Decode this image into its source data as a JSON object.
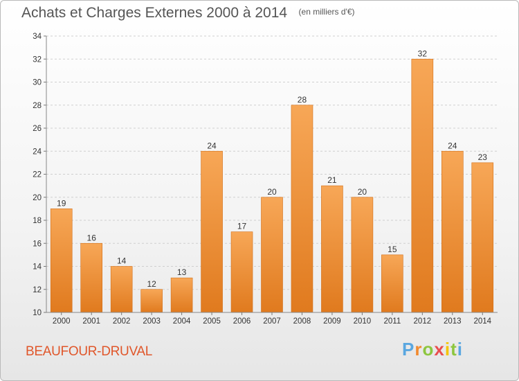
{
  "title": "Achats et Charges Externes 2000 à 2014",
  "subtitle": "(en milliers d'€)",
  "commune": "BEAUFOUR-DRUVAL",
  "logo": {
    "letters": [
      "P",
      "r",
      "o",
      "x",
      "i",
      "t",
      "i"
    ],
    "colors": [
      "#5aa7e0",
      "#f28a2e",
      "#8dc63f",
      "#e94e4e",
      "#f5c400",
      "#8dc63f",
      "#5aa7e0"
    ]
  },
  "colors": {
    "bar_top": "#f7a757",
    "bar_bottom": "#e07a1e",
    "commune_text": "#e0562a"
  },
  "chart_data": {
    "type": "bar",
    "categories": [
      "2000",
      "2001",
      "2002",
      "2003",
      "2004",
      "2005",
      "2006",
      "2007",
      "2008",
      "2009",
      "2010",
      "2011",
      "2012",
      "2013",
      "2014"
    ],
    "values": [
      19,
      16,
      14,
      12,
      13,
      24,
      17,
      20,
      28,
      21,
      20,
      15,
      32,
      24,
      23
    ],
    "title": "Achats et Charges Externes 2000 à 2014",
    "subtitle": "(en milliers d'€)",
    "ylim": [
      10,
      34
    ],
    "yticks": [
      10,
      12,
      14,
      16,
      18,
      20,
      22,
      24,
      26,
      28,
      30,
      32,
      34
    ],
    "grid": "horizontal dashed",
    "legend": "none"
  }
}
